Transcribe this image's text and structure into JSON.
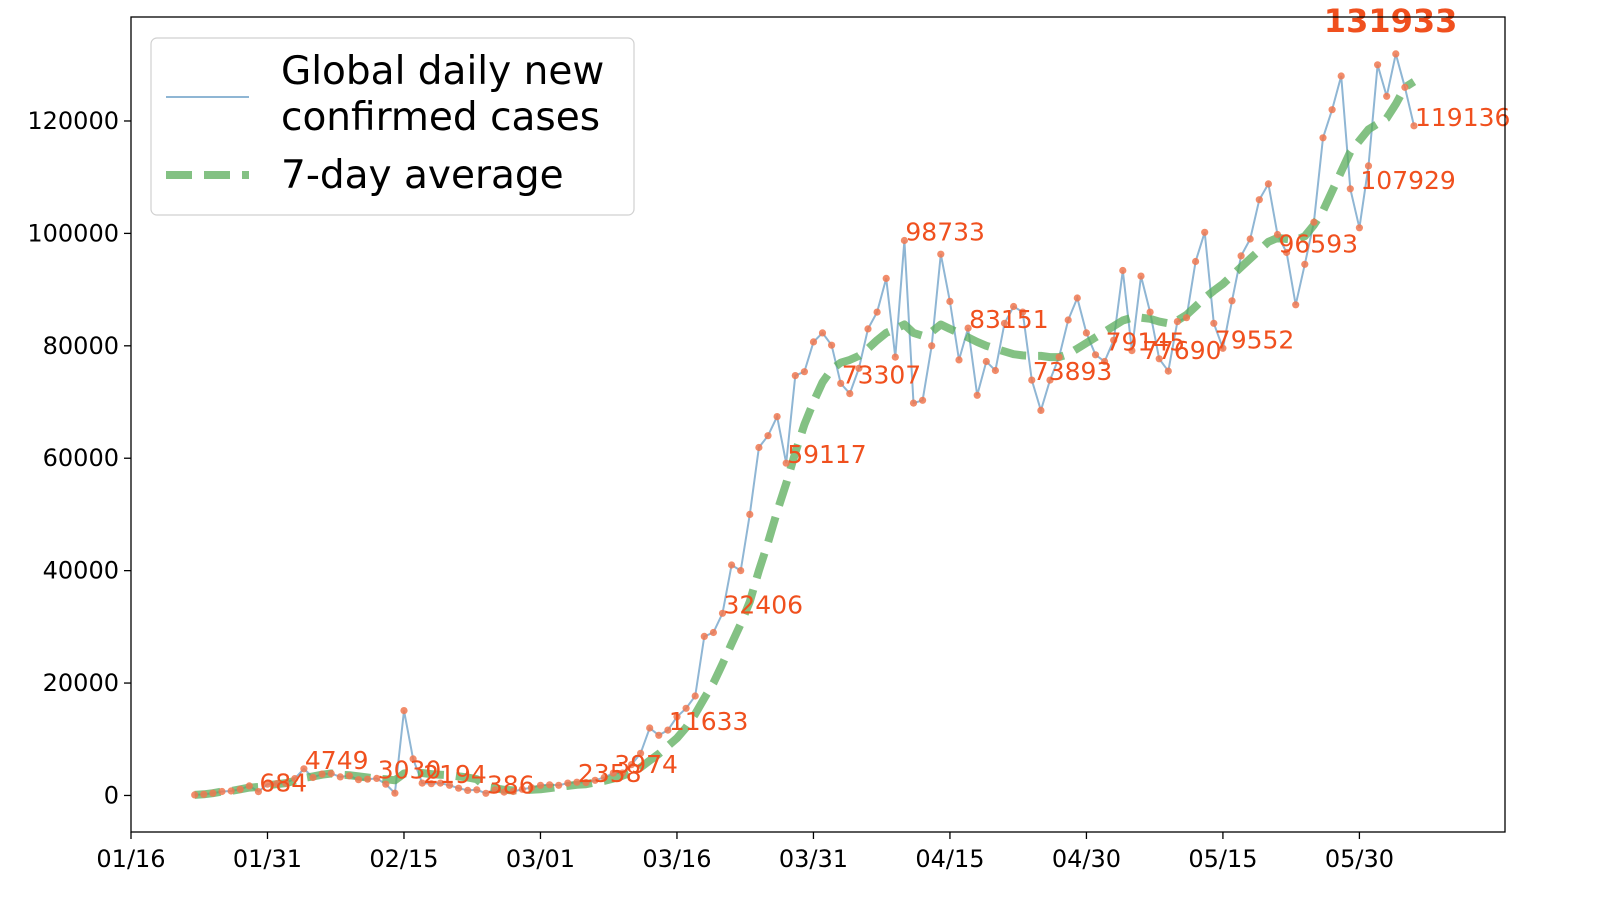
{
  "chart_data": {
    "type": "line",
    "title": "",
    "xlabel": "",
    "ylabel": "",
    "x_ticks": [
      "01/16",
      "01/31",
      "02/15",
      "03/01",
      "03/16",
      "03/31",
      "04/15",
      "04/30",
      "05/15",
      "05/30"
    ],
    "y_ticks": [
      "0",
      "20000",
      "40000",
      "60000",
      "80000",
      "100000",
      "120000"
    ],
    "ylim": [
      -6500,
      138500
    ],
    "xlim": [
      "2020-01-16",
      "2020-06-15"
    ],
    "grid": false,
    "legend": {
      "placement": "top-left",
      "entries": [
        {
          "label": "Global daily new confirmed cases",
          "color": "#8fb6d4",
          "style": "solid"
        },
        {
          "label": "7-day average",
          "color": "#5aac5a",
          "style": "dashed"
        }
      ]
    },
    "series": [
      {
        "name": "Global daily new confirmed cases",
        "color": "#8fb6d4",
        "marker_color": "#f07850",
        "start_date": "2020-01-23",
        "values": [
          100,
          200,
          400,
          700,
          800,
          1100,
          1700,
          684,
          2000,
          2100,
          2200,
          3000,
          4749,
          3200,
          3800,
          3900,
          3300,
          3500,
          2800,
          2900,
          3030,
          2000,
          400,
          15100,
          6500,
          2194,
          2100,
          2200,
          1800,
          1300,
          900,
          1000,
          386,
          1000,
          600,
          700,
          1100,
          1400,
          1800,
          1900,
          1800,
          2200,
          2358,
          2300,
          2700,
          3200,
          3974,
          4000,
          5500,
          7500,
          12000,
          10700,
          11633,
          14000,
          15500,
          17700,
          28300,
          29000,
          32406,
          41000,
          40000,
          50000,
          61900,
          64000,
          67400,
          59117,
          74700,
          75400,
          80700,
          82300,
          80100,
          73307,
          71500,
          76000,
          83000,
          86000,
          92000,
          78000,
          98733,
          69800,
          70300,
          80000,
          96300,
          87900,
          77500,
          83151,
          71200,
          77200,
          75600,
          84000,
          87000,
          86000,
          73893,
          68500,
          73900,
          78000,
          84600,
          88500,
          82300,
          78400,
          77200,
          81000,
          93400,
          79145,
          92400,
          86000,
          77690,
          75500,
          84300,
          85000,
          95000,
          100200,
          84000,
          79552,
          88000,
          96000,
          99000,
          106000,
          108800,
          99800,
          96593,
          87300,
          94500,
          102000,
          117000,
          122000,
          128000,
          107929,
          101000,
          112000,
          130000,
          124400,
          131933,
          126000,
          119136
        ]
      },
      {
        "name": "7-day average",
        "color": "#5aac5a",
        "start_date": "2020-01-23",
        "values": [
          100,
          200,
          400,
          700,
          800,
          1100,
          1400,
          1500,
          1800,
          2000,
          2200,
          2600,
          3100,
          3400,
          3700,
          3900,
          3700,
          3600,
          3400,
          3200,
          3000,
          2900,
          2700,
          3900,
          4100,
          4000,
          3800,
          3700,
          3600,
          3400,
          3200,
          2900,
          1500,
          1300,
          1000,
          900,
          900,
          1000,
          1100,
          1300,
          1500,
          1700,
          1900,
          2000,
          2300,
          2600,
          3000,
          3500,
          4100,
          5000,
          6200,
          7400,
          8800,
          10200,
          12100,
          14500,
          17300,
          20000,
          23400,
          27000,
          30500,
          34500,
          40000,
          45000,
          50500,
          55500,
          61000,
          66000,
          70000,
          73500,
          75800,
          77000,
          77500,
          78200,
          79500,
          81000,
          82300,
          83000,
          83800,
          82300,
          81800,
          82500,
          83800,
          83000,
          82300,
          81500,
          80700,
          80000,
          79500,
          79000,
          78500,
          78300,
          78200,
          78200,
          78000,
          78000,
          78500,
          79500,
          80500,
          81500,
          82500,
          83500,
          84500,
          85000,
          85000,
          84800,
          84300,
          84000,
          84500,
          85500,
          87000,
          88500,
          89800,
          91000,
          92500,
          94000,
          95500,
          97000,
          98500,
          99200,
          99000,
          98800,
          99500,
          101500,
          104000,
          107500,
          111000,
          114500,
          116500,
          118500,
          119500,
          120500,
          123000,
          126000,
          127000
        ]
      }
    ],
    "annotations": [
      {
        "date": "2020-01-30",
        "value": 684,
        "label": "684",
        "bold": false
      },
      {
        "date": "2020-02-04",
        "value": 4749,
        "label": "4749",
        "bold": false
      },
      {
        "date": "2020-02-12",
        "value": 3030,
        "label": "3030",
        "bold": false
      },
      {
        "date": "2020-02-17",
        "value": 2194,
        "label": "2194",
        "bold": false
      },
      {
        "date": "2020-02-24",
        "value": 386,
        "label": "386",
        "bold": false
      },
      {
        "date": "2020-03-05",
        "value": 2358,
        "label": "2358",
        "bold": false
      },
      {
        "date": "2020-03-09",
        "value": 3974,
        "label": "3974",
        "bold": false
      },
      {
        "date": "2020-03-15",
        "value": 11633,
        "label": "11633",
        "bold": false
      },
      {
        "date": "2020-03-21",
        "value": 32406,
        "label": "32406",
        "bold": false
      },
      {
        "date": "2020-03-28",
        "value": 59117,
        "label": "59117",
        "bold": false
      },
      {
        "date": "2020-04-03",
        "value": 73307,
        "label": "73307",
        "bold": false
      },
      {
        "date": "2020-04-10",
        "value": 98733,
        "label": "98733",
        "bold": false
      },
      {
        "date": "2020-04-17",
        "value": 83151,
        "label": "83151",
        "bold": false
      },
      {
        "date": "2020-04-24",
        "value": 73893,
        "label": "73893",
        "bold": false
      },
      {
        "date": "2020-05-02",
        "value": 79145,
        "label": "79145",
        "bold": false
      },
      {
        "date": "2020-05-06",
        "value": 77690,
        "label": "77690",
        "bold": false
      },
      {
        "date": "2020-05-14",
        "value": 79552,
        "label": "79552",
        "bold": false
      },
      {
        "date": "2020-05-21",
        "value": 96593,
        "label": "96593",
        "bold": false
      },
      {
        "date": "2020-05-30",
        "value": 107929,
        "label": "107929",
        "bold": false
      },
      {
        "date": "2020-06-03",
        "value": 131933,
        "label": "131933",
        "bold": true
      },
      {
        "date": "2020-06-05",
        "value": 119136,
        "label": "119136",
        "bold": false
      }
    ]
  }
}
